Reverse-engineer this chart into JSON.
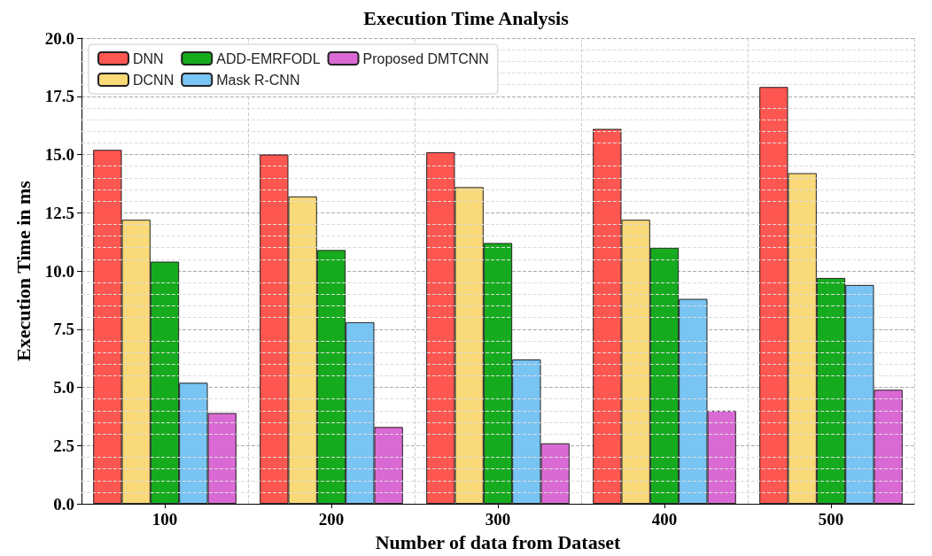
{
  "chart_data": {
    "type": "bar",
    "title": "Execution Time Analysis",
    "xlabel": "Number of data from Dataset",
    "ylabel": "Execution Time in ms",
    "categories": [
      "100",
      "200",
      "300",
      "400",
      "500"
    ],
    "series": [
      {
        "name": "DNN",
        "color": "#fe5650",
        "values": [
          15.2,
          15.0,
          15.1,
          16.1,
          17.9
        ]
      },
      {
        "name": "DCNN",
        "color": "#f9d978",
        "values": [
          12.2,
          13.2,
          13.6,
          12.2,
          14.2
        ]
      },
      {
        "name": "ADD-EMRFODL",
        "color": "#16ab1e",
        "values": [
          10.4,
          10.9,
          11.2,
          11.0,
          9.7
        ]
      },
      {
        "name": "Mask R-CNN",
        "color": "#78c4f3",
        "values": [
          5.2,
          7.8,
          6.2,
          8.8,
          9.4
        ]
      },
      {
        "name": "Proposed DMTCNN",
        "color": "#da6ad3",
        "values": [
          3.9,
          3.3,
          2.6,
          4.0,
          4.9
        ]
      }
    ],
    "ylim": [
      0,
      20
    ],
    "yticks": [
      {
        "value": 0,
        "label": "0.0"
      },
      {
        "value": 2.5,
        "label": "2.5"
      },
      {
        "value": 5,
        "label": "5.0"
      },
      {
        "value": 7.5,
        "label": "7.5"
      },
      {
        "value": 10,
        "label": "10.0"
      },
      {
        "value": 12.5,
        "label": "12.5"
      },
      {
        "value": 15,
        "label": "15.0"
      },
      {
        "value": 17.5,
        "label": "17.5"
      },
      {
        "value": 20,
        "label": "20.0"
      }
    ],
    "grid": true,
    "legend": "top left"
  }
}
